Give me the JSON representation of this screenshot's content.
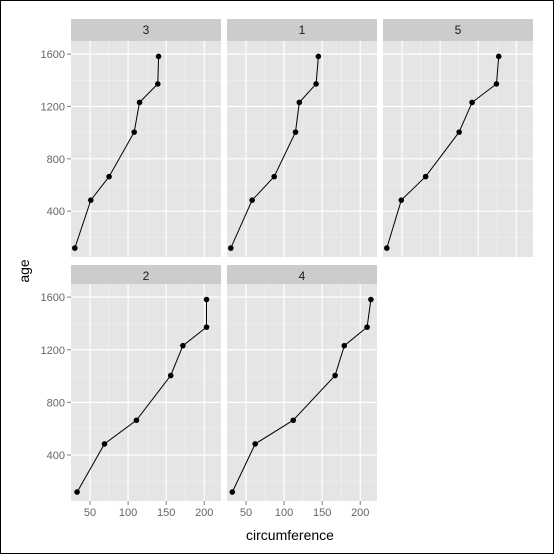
{
  "chart_data": {
    "type": "line",
    "xlabel": "circumference",
    "ylabel": "age",
    "xlim": [
      25,
      222
    ],
    "ylim": [
      50,
      1700
    ],
    "x_ticks": [
      50,
      100,
      150,
      200
    ],
    "y_ticks": [
      400,
      800,
      1200,
      1600
    ],
    "grid": true,
    "panels": [
      {
        "label": "3",
        "points": [
          [
            30,
            118
          ],
          [
            51,
            484
          ],
          [
            75,
            664
          ],
          [
            108,
            1004
          ],
          [
            115,
            1231
          ],
          [
            139,
            1372
          ],
          [
            140,
            1582
          ]
        ]
      },
      {
        "label": "1",
        "points": [
          [
            30,
            118
          ],
          [
            58,
            484
          ],
          [
            87,
            664
          ],
          [
            115,
            1004
          ],
          [
            120,
            1231
          ],
          [
            142,
            1372
          ],
          [
            145,
            1582
          ]
        ]
      },
      {
        "label": "5",
        "points": [
          [
            30,
            118
          ],
          [
            49,
            484
          ],
          [
            81,
            664
          ],
          [
            125,
            1004
          ],
          [
            142,
            1231
          ],
          [
            174,
            1372
          ],
          [
            177,
            1582
          ]
        ]
      },
      {
        "label": "2",
        "points": [
          [
            33,
            118
          ],
          [
            69,
            484
          ],
          [
            111,
            664
          ],
          [
            156,
            1004
          ],
          [
            172,
            1231
          ],
          [
            203,
            1372
          ],
          [
            203,
            1582
          ]
        ]
      },
      {
        "label": "4",
        "points": [
          [
            32,
            118
          ],
          [
            62,
            484
          ],
          [
            112,
            664
          ],
          [
            167,
            1004
          ],
          [
            179,
            1231
          ],
          [
            209,
            1372
          ],
          [
            214,
            1582
          ]
        ]
      }
    ]
  },
  "colors": {
    "panel_bg": "#E5E5E5",
    "grid_major": "#FFFFFF",
    "grid_minor": "#F2F2F2",
    "strip_bg": "#CCCCCC",
    "line": "#000000",
    "tick_text": "#666666"
  }
}
